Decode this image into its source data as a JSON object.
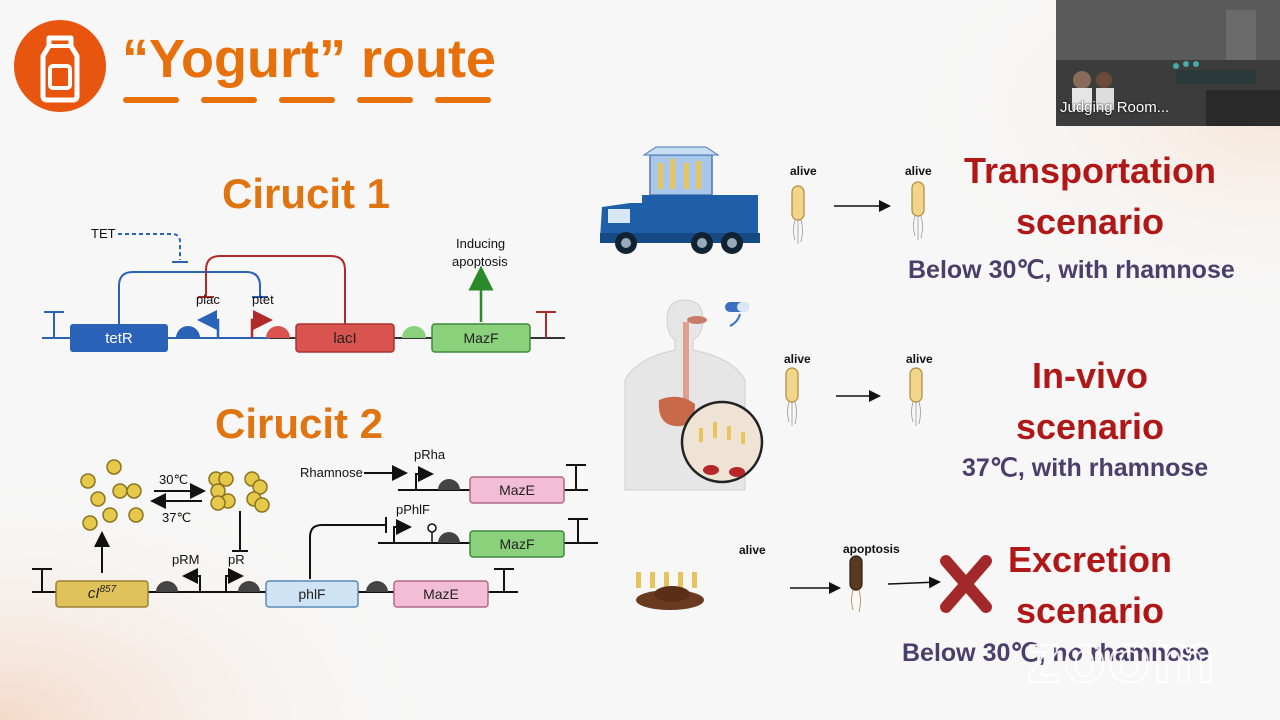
{
  "slide": {
    "title": "“Yogurt” route",
    "circuit1": {
      "title": "Cirucit 1",
      "tet": "TET",
      "inducing": "Inducing",
      "apoptosis": "apoptosis",
      "plac": "plac",
      "ptet": "ptet",
      "gene_tetR": "tetR",
      "gene_lacI": "lacI",
      "gene_mazF": "MazF"
    },
    "circuit2": {
      "title": "Cirucit 2",
      "temp_30": "30℃",
      "temp_37": "37℃",
      "rhamnose": "Rhamnose",
      "pRha": "pRha",
      "pPhlF": "pPhlF",
      "pRM": "pRM",
      "pR": "pR",
      "gene_cI_main": "cI",
      "gene_cI_sup": "857",
      "gene_phlF": "phlF",
      "gene_mazE_1": "MazE",
      "gene_mazE_2": "MazE",
      "gene_mazF": "MazF"
    },
    "scenarios": [
      {
        "title_line1": "Transportation",
        "title_line2": "scenario",
        "condition": "Below 30℃, with rhamnose",
        "state_before": "alive",
        "state_after": "alive"
      },
      {
        "title_line1": "In-vivo",
        "title_line2": "scenario",
        "condition": "37℃, with rhamnose",
        "state_before": "alive",
        "state_after": "alive"
      },
      {
        "title_line1": "Excretion",
        "title_line2": "scenario",
        "condition": "Below 30℃, no rhamnose",
        "state_before": "alive",
        "state_after": "apoptosis"
      }
    ]
  },
  "meeting": {
    "participant_name": "Judging Room...",
    "watermark": "zoom"
  },
  "colors": {
    "orange": "#e8700a",
    "scenario_red": "#b01818",
    "condition_purple": "#4a3f6a",
    "tetR_blue": "#2a62b8",
    "lacI_red": "#d9534f",
    "mazF_green": "#8bd07a",
    "mazE_pink": "#f3bdd6",
    "phlF_lightblue": "#cfe3f5",
    "cI_yellow": "#e0c25a"
  },
  "icons": [
    "milk-bottle-icon",
    "truck-icon",
    "human-body-icon",
    "pill-icon",
    "bacterium-icon",
    "feces-icon",
    "red-x-icon"
  ]
}
